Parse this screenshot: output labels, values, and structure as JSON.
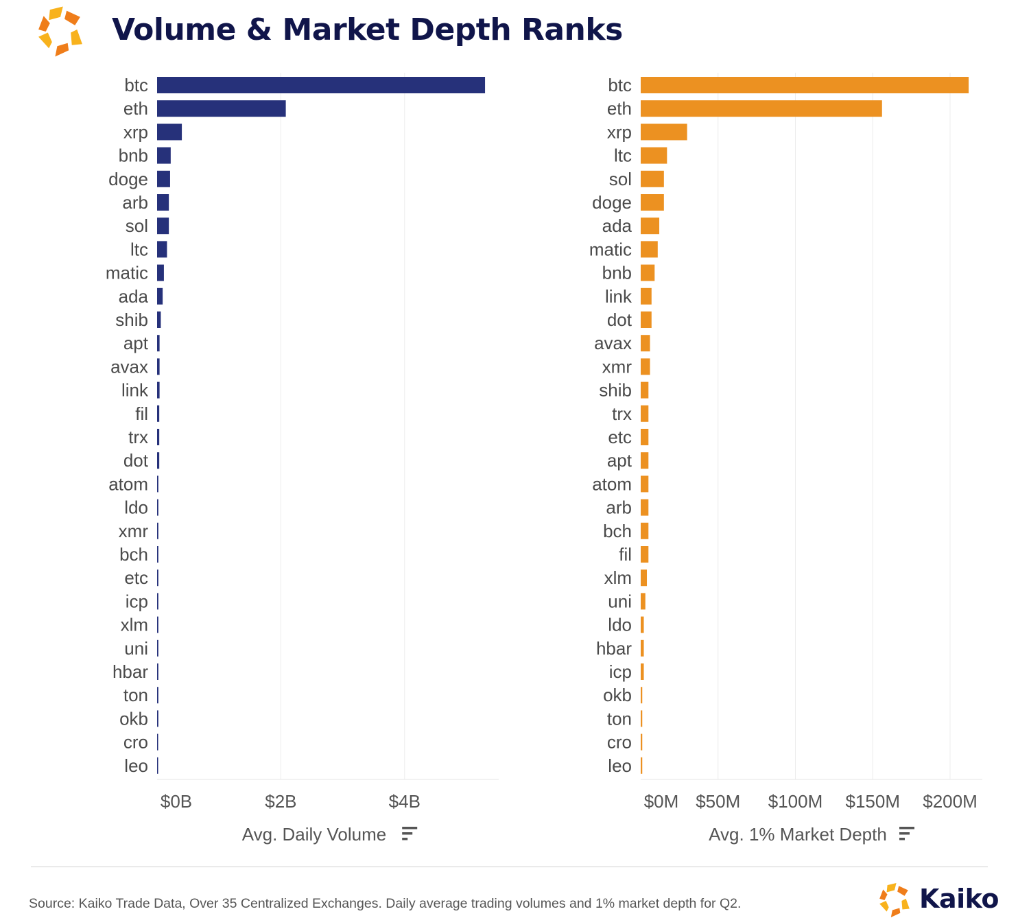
{
  "title": "Volume & Market Depth Ranks",
  "source_note": "Source: Kaiko Trade Data, Over 35 Centralized Exchanges. Daily average trading volumes and 1% market depth for Q2.",
  "brand": {
    "name": "Kaiko",
    "logo_icon": "kaiko-logo-icon",
    "logo_colors": [
      "#f8b21c",
      "#ef7d1a"
    ]
  },
  "chart_data": [
    {
      "type": "bar",
      "orientation": "horizontal",
      "color": "#26317a",
      "categories": [
        "btc",
        "eth",
        "xrp",
        "bnb",
        "doge",
        "arb",
        "sol",
        "ltc",
        "matic",
        "ada",
        "shib",
        "apt",
        "avax",
        "link",
        "fil",
        "trx",
        "dot",
        "atom",
        "ldo",
        "xmr",
        "bch",
        "etc",
        "icp",
        "xlm",
        "uni",
        "hbar",
        "ton",
        "okb",
        "cro",
        "leo"
      ],
      "values": [
        5.3,
        2.08,
        0.4,
        0.22,
        0.21,
        0.19,
        0.19,
        0.16,
        0.11,
        0.09,
        0.06,
        0.04,
        0.04,
        0.04,
        0.035,
        0.035,
        0.035,
        0.02,
        0.02,
        0.02,
        0.02,
        0.02,
        0.02,
        0.02,
        0.02,
        0.02,
        0.02,
        0.02,
        0.015,
        0.015
      ],
      "unit": "USD billions",
      "xticks": [
        0,
        2,
        4
      ],
      "xtick_labels": [
        "$0B",
        "$2B",
        "$4B"
      ],
      "xlim": [
        0,
        5.5
      ],
      "xlabel": "Avg. Daily Volume",
      "sort_icon": "sort-descending-icon",
      "grid": true
    },
    {
      "type": "bar",
      "orientation": "horizontal",
      "color": "#ec9121",
      "categories": [
        "btc",
        "eth",
        "xrp",
        "ltc",
        "sol",
        "doge",
        "ada",
        "matic",
        "bnb",
        "link",
        "dot",
        "avax",
        "xmr",
        "shib",
        "trx",
        "etc",
        "apt",
        "atom",
        "arb",
        "bch",
        "fil",
        "xlm",
        "uni",
        "ldo",
        "hbar",
        "icp",
        "okb",
        "ton",
        "cro",
        "leo"
      ],
      "values": [
        212,
        156,
        30,
        17,
        15,
        15,
        12,
        11,
        9,
        7,
        7,
        6,
        6,
        5,
        5,
        5,
        5,
        5,
        5,
        5,
        5,
        4,
        3,
        2,
        2,
        2,
        1,
        1,
        1,
        1
      ],
      "unit": "USD millions",
      "xticks": [
        0,
        50,
        100,
        150,
        200
      ],
      "xtick_labels": [
        "$0M",
        "$50M",
        "$100M",
        "$150M",
        "$200M"
      ],
      "xlim": [
        0,
        220
      ],
      "xlabel": "Avg. 1% Market Depth",
      "sort_icon": "sort-descending-icon",
      "grid": true
    }
  ]
}
